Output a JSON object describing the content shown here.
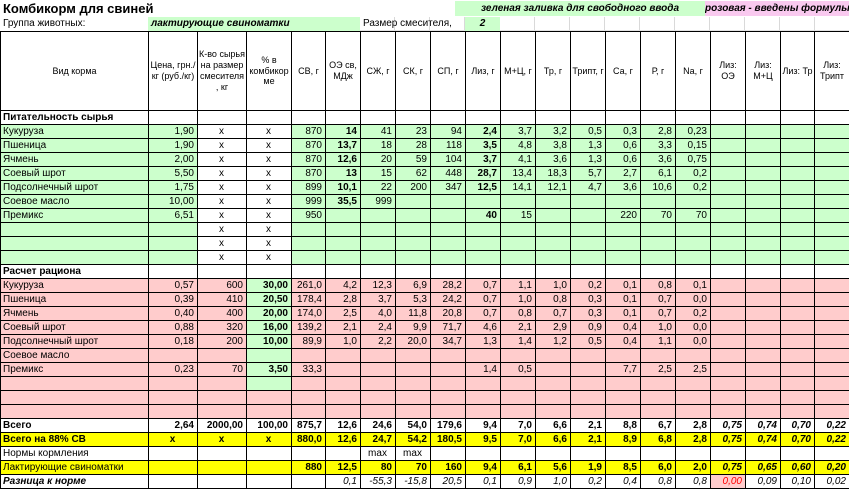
{
  "app": {
    "title": "Комбикорм для свиней"
  },
  "legend": {
    "green_note": "зеленая заливка для свободного ввода",
    "pink_note": "розовая - введены формулы"
  },
  "group": {
    "label": "Группа животных:",
    "value": "лактирующие свиноматки",
    "mixer_label": "Размер смесителя,",
    "mixer_value": "2"
  },
  "colors": {
    "free_input_green": "#ccffcc",
    "formula_pink": "#ffcccc",
    "legend_pink": "#f9c9ef",
    "highlight_yellow": "#ffff00",
    "alert_red": "#ff0000"
  },
  "table": {
    "column_headers": [
      "Вид корма",
      "Цена, грн./кг (руб./кг)",
      "К-во сырья на размер смесителя, кг",
      "% в комбикорме",
      "СВ, г",
      "ОЭ св, МДж",
      "СЖ, г",
      "СК, г",
      "СП, г",
      "Лиз, г",
      "М+Ц, г",
      "Тр, г",
      "Трипт, г",
      "Са, г",
      "Р, г",
      "Na, г",
      "Лиз: ОЭ",
      "Лиз: М+Ц",
      "Лиз: Тр",
      "Лиз: Трипт"
    ],
    "column_keys": [
      "feed-type",
      "price",
      "qty-per-mixer",
      "percent-in-feed",
      "dry-matter",
      "me",
      "fat",
      "fiber",
      "protein",
      "lys",
      "met-cys",
      "thr",
      "trp",
      "ca",
      "p",
      "na",
      "lys-me",
      "lys-met-cys",
      "lys-thr",
      "lys-trp"
    ],
    "rows": [
      {
        "name": "section-nutrition",
        "kind": "section",
        "cells": [
          "Питательность сырья",
          "",
          "",
          "",
          "",
          "",
          "",
          "",
          "",
          "",
          "",
          "",
          "",
          "",
          "",
          "",
          "",
          "",
          "",
          ""
        ]
      },
      {
        "name": "row-corn-nutrition",
        "kind": "green",
        "cells": [
          "Кукуруза",
          "1,90",
          "х",
          "х",
          "870",
          "14",
          "41",
          "23",
          "94",
          "2,4",
          "3,7",
          "3,2",
          "0,5",
          "0,3",
          "2,8",
          "0,23",
          "",
          "",
          "",
          ""
        ]
      },
      {
        "name": "row-wheat-nutrition",
        "kind": "green",
        "cells": [
          "Пшеница",
          "1,90",
          "х",
          "х",
          "870",
          "13,7",
          "18",
          "28",
          "118",
          "3,5",
          "4,8",
          "3,8",
          "1,3",
          "0,6",
          "3,3",
          "0,15",
          "",
          "",
          "",
          ""
        ]
      },
      {
        "name": "row-barley-nutrition",
        "kind": "green",
        "cells": [
          "Ячмень",
          "2,00",
          "х",
          "х",
          "870",
          "12,6",
          "20",
          "59",
          "104",
          "3,7",
          "4,1",
          "3,6",
          "1,3",
          "0,6",
          "3,6",
          "0,75",
          "",
          "",
          "",
          ""
        ]
      },
      {
        "name": "row-soybean-meal-nutrition",
        "kind": "green",
        "cells": [
          "Соевый шрот",
          "5,50",
          "х",
          "х",
          "870",
          "13",
          "15",
          "62",
          "448",
          "28,7",
          "13,4",
          "18,3",
          "5,7",
          "2,7",
          "6,1",
          "0,2",
          "",
          "",
          "",
          ""
        ]
      },
      {
        "name": "row-sunflower-meal-nutrition",
        "kind": "green",
        "cells": [
          "Подсолнечный шрот",
          "1,75",
          "х",
          "х",
          "899",
          "10,1",
          "22",
          "200",
          "347",
          "12,5",
          "14,1",
          "12,1",
          "4,7",
          "3,6",
          "10,6",
          "0,2",
          "",
          "",
          "",
          ""
        ]
      },
      {
        "name": "row-soybean-oil-nutrition",
        "kind": "green",
        "cells": [
          "Соевое масло",
          "10,00",
          "х",
          "х",
          "999",
          "35,5",
          "999",
          "",
          "",
          "",
          "",
          "",
          "",
          "",
          "",
          "",
          "",
          "",
          "",
          ""
        ]
      },
      {
        "name": "row-premix-nutrition",
        "kind": "green",
        "cells": [
          "Премикс",
          "6,51",
          "х",
          "х",
          "950",
          "",
          "",
          "",
          "",
          "40",
          "15",
          "",
          "",
          "220",
          "70",
          "70",
          "",
          "",
          "",
          ""
        ]
      },
      {
        "name": "row-empty-nutrition-1",
        "kind": "green-empty",
        "cells": [
          "",
          "",
          "х",
          "х",
          "",
          "",
          "",
          "",
          "",
          "",
          "",
          "",
          "",
          "",
          "",
          "",
          "",
          "",
          "",
          ""
        ]
      },
      {
        "name": "row-empty-nutrition-2",
        "kind": "green-empty",
        "cells": [
          "",
          "",
          "х",
          "х",
          "",
          "",
          "",
          "",
          "",
          "",
          "",
          "",
          "",
          "",
          "",
          "",
          "",
          "",
          "",
          ""
        ]
      },
      {
        "name": "row-empty-nutrition-3",
        "kind": "green-empty",
        "cells": [
          "",
          "",
          "х",
          "х",
          "",
          "",
          "",
          "",
          "",
          "",
          "",
          "",
          "",
          "",
          "",
          "",
          "",
          "",
          "",
          ""
        ]
      },
      {
        "name": "section-ration",
        "kind": "section",
        "cells": [
          "Расчет рациона",
          "",
          "",
          "",
          "",
          "",
          "",
          "",
          "",
          "",
          "",
          "",
          "",
          "",
          "",
          "",
          "",
          "",
          "",
          ""
        ]
      },
      {
        "name": "row-corn-ration",
        "kind": "pink",
        "cells": [
          "Кукуруза",
          "0,57",
          "600",
          "30,00",
          "261,0",
          "4,2",
          "12,3",
          "6,9",
          "28,2",
          "0,7",
          "1,1",
          "1,0",
          "0,2",
          "0,1",
          "0,8",
          "0,1",
          "",
          "",
          "",
          ""
        ]
      },
      {
        "name": "row-wheat-ration",
        "kind": "pink",
        "cells": [
          "Пшеница",
          "0,39",
          "410",
          "20,50",
          "178,4",
          "2,8",
          "3,7",
          "5,3",
          "24,2",
          "0,7",
          "1,0",
          "0,8",
          "0,3",
          "0,1",
          "0,7",
          "0,0",
          "",
          "",
          "",
          ""
        ]
      },
      {
        "name": "row-barley-ration",
        "kind": "pink",
        "cells": [
          "Ячмень",
          "0,40",
          "400",
          "20,00",
          "174,0",
          "2,5",
          "4,0",
          "11,8",
          "20,8",
          "0,7",
          "0,8",
          "0,7",
          "0,3",
          "0,1",
          "0,7",
          "0,2",
          "",
          "",
          "",
          ""
        ]
      },
      {
        "name": "row-soybean-meal-ration",
        "kind": "pink",
        "cells": [
          "Соевый шрот",
          "0,88",
          "320",
          "16,00",
          "139,2",
          "2,1",
          "2,4",
          "9,9",
          "71,7",
          "4,6",
          "2,1",
          "2,9",
          "0,9",
          "0,4",
          "1,0",
          "0,0",
          "",
          "",
          "",
          ""
        ]
      },
      {
        "name": "row-sunflower-meal-ration",
        "kind": "pink",
        "cells": [
          "Подсолнечный шрот",
          "0,18",
          "200",
          "10,00",
          "89,9",
          "1,0",
          "2,2",
          "20,0",
          "34,7",
          "1,3",
          "1,4",
          "1,2",
          "0,5",
          "0,4",
          "1,1",
          "0,0",
          "",
          "",
          "",
          ""
        ]
      },
      {
        "name": "row-soybean-oil-ration",
        "kind": "pink",
        "cells": [
          "Соевое масло",
          "",
          "",
          "",
          "",
          "",
          "",
          "",
          "",
          "",
          "",
          "",
          "",
          "",
          "",
          "",
          "",
          "",
          "",
          ""
        ]
      },
      {
        "name": "row-premix-ration",
        "kind": "pink",
        "cells": [
          "Премикс",
          "0,23",
          "70",
          "3,50",
          "33,3",
          "",
          "",
          "",
          "",
          "1,4",
          "0,5",
          "",
          "",
          "7,7",
          "2,5",
          "2,5",
          "",
          "",
          "",
          ""
        ]
      },
      {
        "name": "row-empty-ration-1",
        "kind": "pink-empty-green",
        "cells": [
          "",
          "",
          "",
          "",
          "",
          "",
          "",
          "",
          "",
          "",
          "",
          "",
          "",
          "",
          "",
          "",
          "",
          "",
          "",
          ""
        ]
      },
      {
        "name": "row-empty-ration-2",
        "kind": "pink-empty",
        "cells": [
          "",
          "",
          "",
          "",
          "",
          "",
          "",
          "",
          "",
          "",
          "",
          "",
          "",
          "",
          "",
          "",
          "",
          "",
          "",
          ""
        ]
      },
      {
        "name": "row-empty-ration-3",
        "kind": "pink-empty",
        "cells": [
          "",
          "",
          "",
          "",
          "",
          "",
          "",
          "",
          "",
          "",
          "",
          "",
          "",
          "",
          "",
          "",
          "",
          "",
          "",
          ""
        ]
      },
      {
        "name": "row-total",
        "kind": "total",
        "cells": [
          "Всего",
          "2,64",
          "2000,00",
          "100,00",
          "875,7",
          "12,6",
          "24,6",
          "54,0",
          "179,6",
          "9,4",
          "7,0",
          "6,6",
          "2,1",
          "8,8",
          "6,7",
          "2,8",
          "0,75",
          "0,74",
          "0,70",
          "0,22"
        ]
      },
      {
        "name": "row-total-88-dm",
        "kind": "total88",
        "cells": [
          "Всего на 88% СВ",
          "х",
          "х",
          "х",
          "880,0",
          "12,6",
          "24,7",
          "54,2",
          "180,5",
          "9,5",
          "7,0",
          "6,6",
          "2,1",
          "8,9",
          "6,8",
          "2,8",
          "0,75",
          "0,74",
          "0,70",
          "0,22"
        ]
      },
      {
        "name": "row-feeding-norms",
        "kind": "norms",
        "cells": [
          "Нормы кормления",
          "",
          "",
          "",
          "",
          "",
          "max",
          "max",
          "",
          "",
          "",
          "",
          "",
          "",
          "",
          "",
          "",
          "",
          "",
          ""
        ]
      },
      {
        "name": "row-lactating-sows-norm",
        "kind": "target",
        "cells": [
          "Лактирующие свиноматки",
          "",
          "",
          "",
          "880",
          "12,5",
          "80",
          "70",
          "160",
          "9,4",
          "6,1",
          "5,6",
          "1,9",
          "8,5",
          "6,0",
          "2,0",
          "0,75",
          "0,65",
          "0,60",
          "0,20"
        ]
      },
      {
        "name": "row-difference-to-norm",
        "kind": "diff",
        "cells": [
          "Разница к норме",
          "",
          "",
          "",
          "",
          "0,1",
          "-55,3",
          "-15,8",
          "20,5",
          "0,1",
          "0,9",
          "1,0",
          "0,2",
          "0,4",
          "0,8",
          "0,8",
          "0,00",
          "0,09",
          "0,10",
          "0,02"
        ]
      }
    ]
  }
}
